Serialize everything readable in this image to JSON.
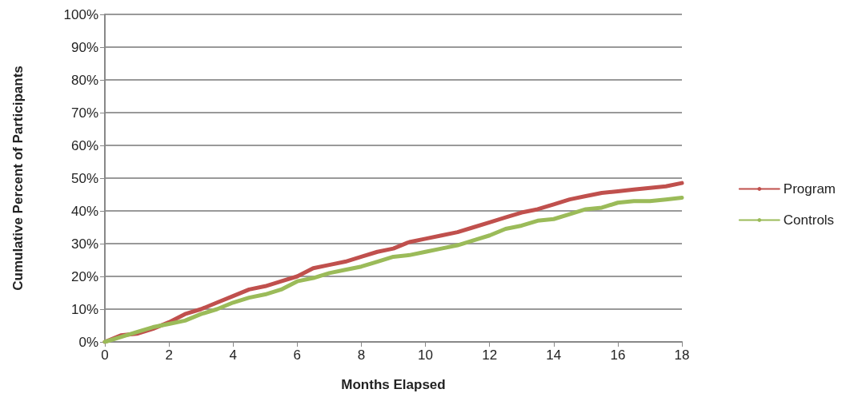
{
  "chart_data": {
    "type": "line",
    "xlabel": "Months Elapsed",
    "ylabel": "Cumulative Percent of Participants",
    "x": [
      0,
      0.5,
      1,
      1.5,
      2,
      2.5,
      3,
      3.5,
      4,
      4.5,
      5,
      5.5,
      6,
      6.5,
      7,
      7.5,
      8,
      8.5,
      9,
      9.5,
      10,
      10.5,
      11,
      11.5,
      12,
      12.5,
      13,
      13.5,
      14,
      14.5,
      15,
      15.5,
      16,
      16.5,
      17,
      17.5,
      18
    ],
    "series": [
      {
        "name": "Program",
        "color": "#c0504d",
        "values": [
          0,
          2,
          2.5,
          4,
          6,
          8.5,
          10,
          12,
          14,
          16,
          17,
          18.5,
          20,
          22.5,
          23.5,
          24.5,
          26,
          27.5,
          28.5,
          30.5,
          31.5,
          32.5,
          33.5,
          35,
          36.5,
          38,
          39.5,
          40.5,
          42,
          43.5,
          44.5,
          45.5,
          46,
          46.5,
          47,
          47.5,
          48.5
        ]
      },
      {
        "name": "Controls",
        "color": "#9bbb59",
        "values": [
          0,
          1.5,
          3,
          4.5,
          5.5,
          6.5,
          8.5,
          10,
          12,
          13.5,
          14.5,
          16,
          18.5,
          19.5,
          21,
          22,
          23,
          24.5,
          26,
          26.5,
          27.5,
          28.5,
          29.5,
          31,
          32.5,
          34.5,
          35.5,
          37,
          37.5,
          39,
          40.5,
          41,
          42.5,
          43,
          43,
          43.5,
          44
        ]
      }
    ],
    "xlim": [
      0,
      18
    ],
    "xticks": [
      0,
      2,
      4,
      6,
      8,
      10,
      12,
      14,
      16,
      18
    ],
    "ylim": [
      0,
      100
    ],
    "yticks": [
      {
        "value": 0,
        "label": "0%"
      },
      {
        "value": 10,
        "label": "10%"
      },
      {
        "value": 20,
        "label": "20%"
      },
      {
        "value": 30,
        "label": "30%"
      },
      {
        "value": 40,
        "label": "40%"
      },
      {
        "value": 50,
        "label": "50%"
      },
      {
        "value": 60,
        "label": "60%"
      },
      {
        "value": 70,
        "label": "70%"
      },
      {
        "value": 80,
        "label": "80%"
      },
      {
        "value": 90,
        "label": "90%"
      },
      {
        "value": 100,
        "label": "100%"
      }
    ],
    "grid": "y",
    "legend": "right",
    "marker": "none",
    "line_style": "solid"
  }
}
